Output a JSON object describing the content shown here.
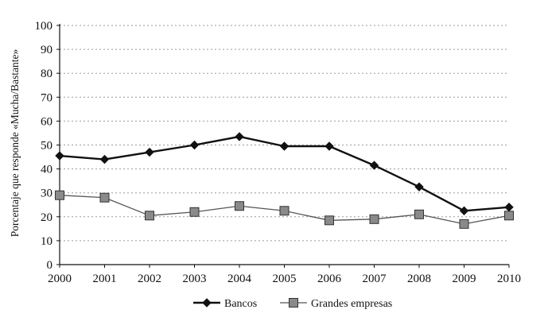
{
  "chart_data": {
    "type": "line",
    "title": "",
    "xlabel": "",
    "ylabel": "Porcentaje que responde «Mucha/Bastante»",
    "ylim": [
      0,
      100
    ],
    "yticks": [
      0,
      10,
      20,
      30,
      40,
      50,
      60,
      70,
      80,
      90,
      100
    ],
    "grid": true,
    "legend_position": "bottom",
    "categories": [
      "2000",
      "2001",
      "2002",
      "2003",
      "2004",
      "2005",
      "2006",
      "2007",
      "2008",
      "2009",
      "2010"
    ],
    "series": [
      {
        "name": "Bancos",
        "marker": "diamond",
        "color": "#111111",
        "values": [
          45.5,
          44,
          47,
          50,
          53.5,
          49.5,
          49.5,
          41.5,
          32.5,
          22.5,
          24
        ]
      },
      {
        "name": "Grandes empresas",
        "marker": "square",
        "color": "#555555",
        "values": [
          29,
          28,
          20.5,
          22,
          24.5,
          22.5,
          18.5,
          19,
          21,
          17,
          20.5
        ]
      }
    ]
  }
}
